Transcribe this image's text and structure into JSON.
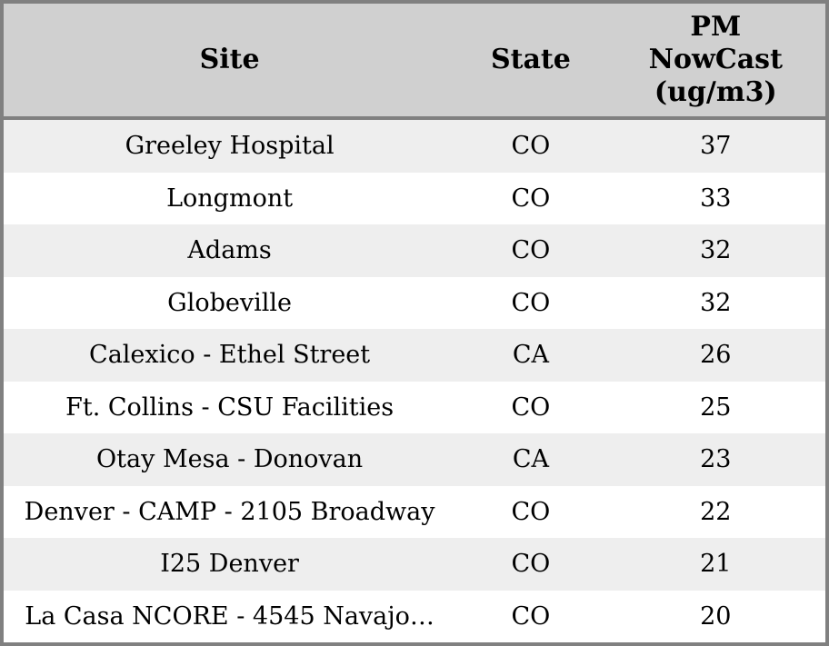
{
  "table": {
    "columns": [
      {
        "key": "site",
        "label": "Site"
      },
      {
        "key": "state",
        "label": "State"
      },
      {
        "key": "pm",
        "label": "PM NowCast (ug/m3)"
      }
    ],
    "rows": [
      {
        "site": "Greeley Hospital",
        "state": "CO",
        "pm": 37
      },
      {
        "site": "Longmont",
        "state": "CO",
        "pm": 33
      },
      {
        "site": "Adams",
        "state": "CO",
        "pm": 32
      },
      {
        "site": "Globeville",
        "state": "CO",
        "pm": 32
      },
      {
        "site": "Calexico - Ethel Street",
        "state": "CA",
        "pm": 26
      },
      {
        "site": "Ft. Collins - CSU Facilities",
        "state": "CO",
        "pm": 25
      },
      {
        "site": "Otay Mesa - Donovan",
        "state": "CA",
        "pm": 23
      },
      {
        "site": "Denver - CAMP - 2105 Broadway",
        "state": "CO",
        "pm": 22
      },
      {
        "site": "I25 Denver",
        "state": "CO",
        "pm": 21
      },
      {
        "site": "La Casa NCORE - 4545 Navajo…",
        "state": "CO",
        "pm": 20
      }
    ],
    "colors": {
      "outer_border": "#808080",
      "header_background": "#d0d0d0",
      "stripe_row_background": "#eeeeee",
      "plain_row_background": "#ffffff",
      "text": "#000000"
    }
  }
}
